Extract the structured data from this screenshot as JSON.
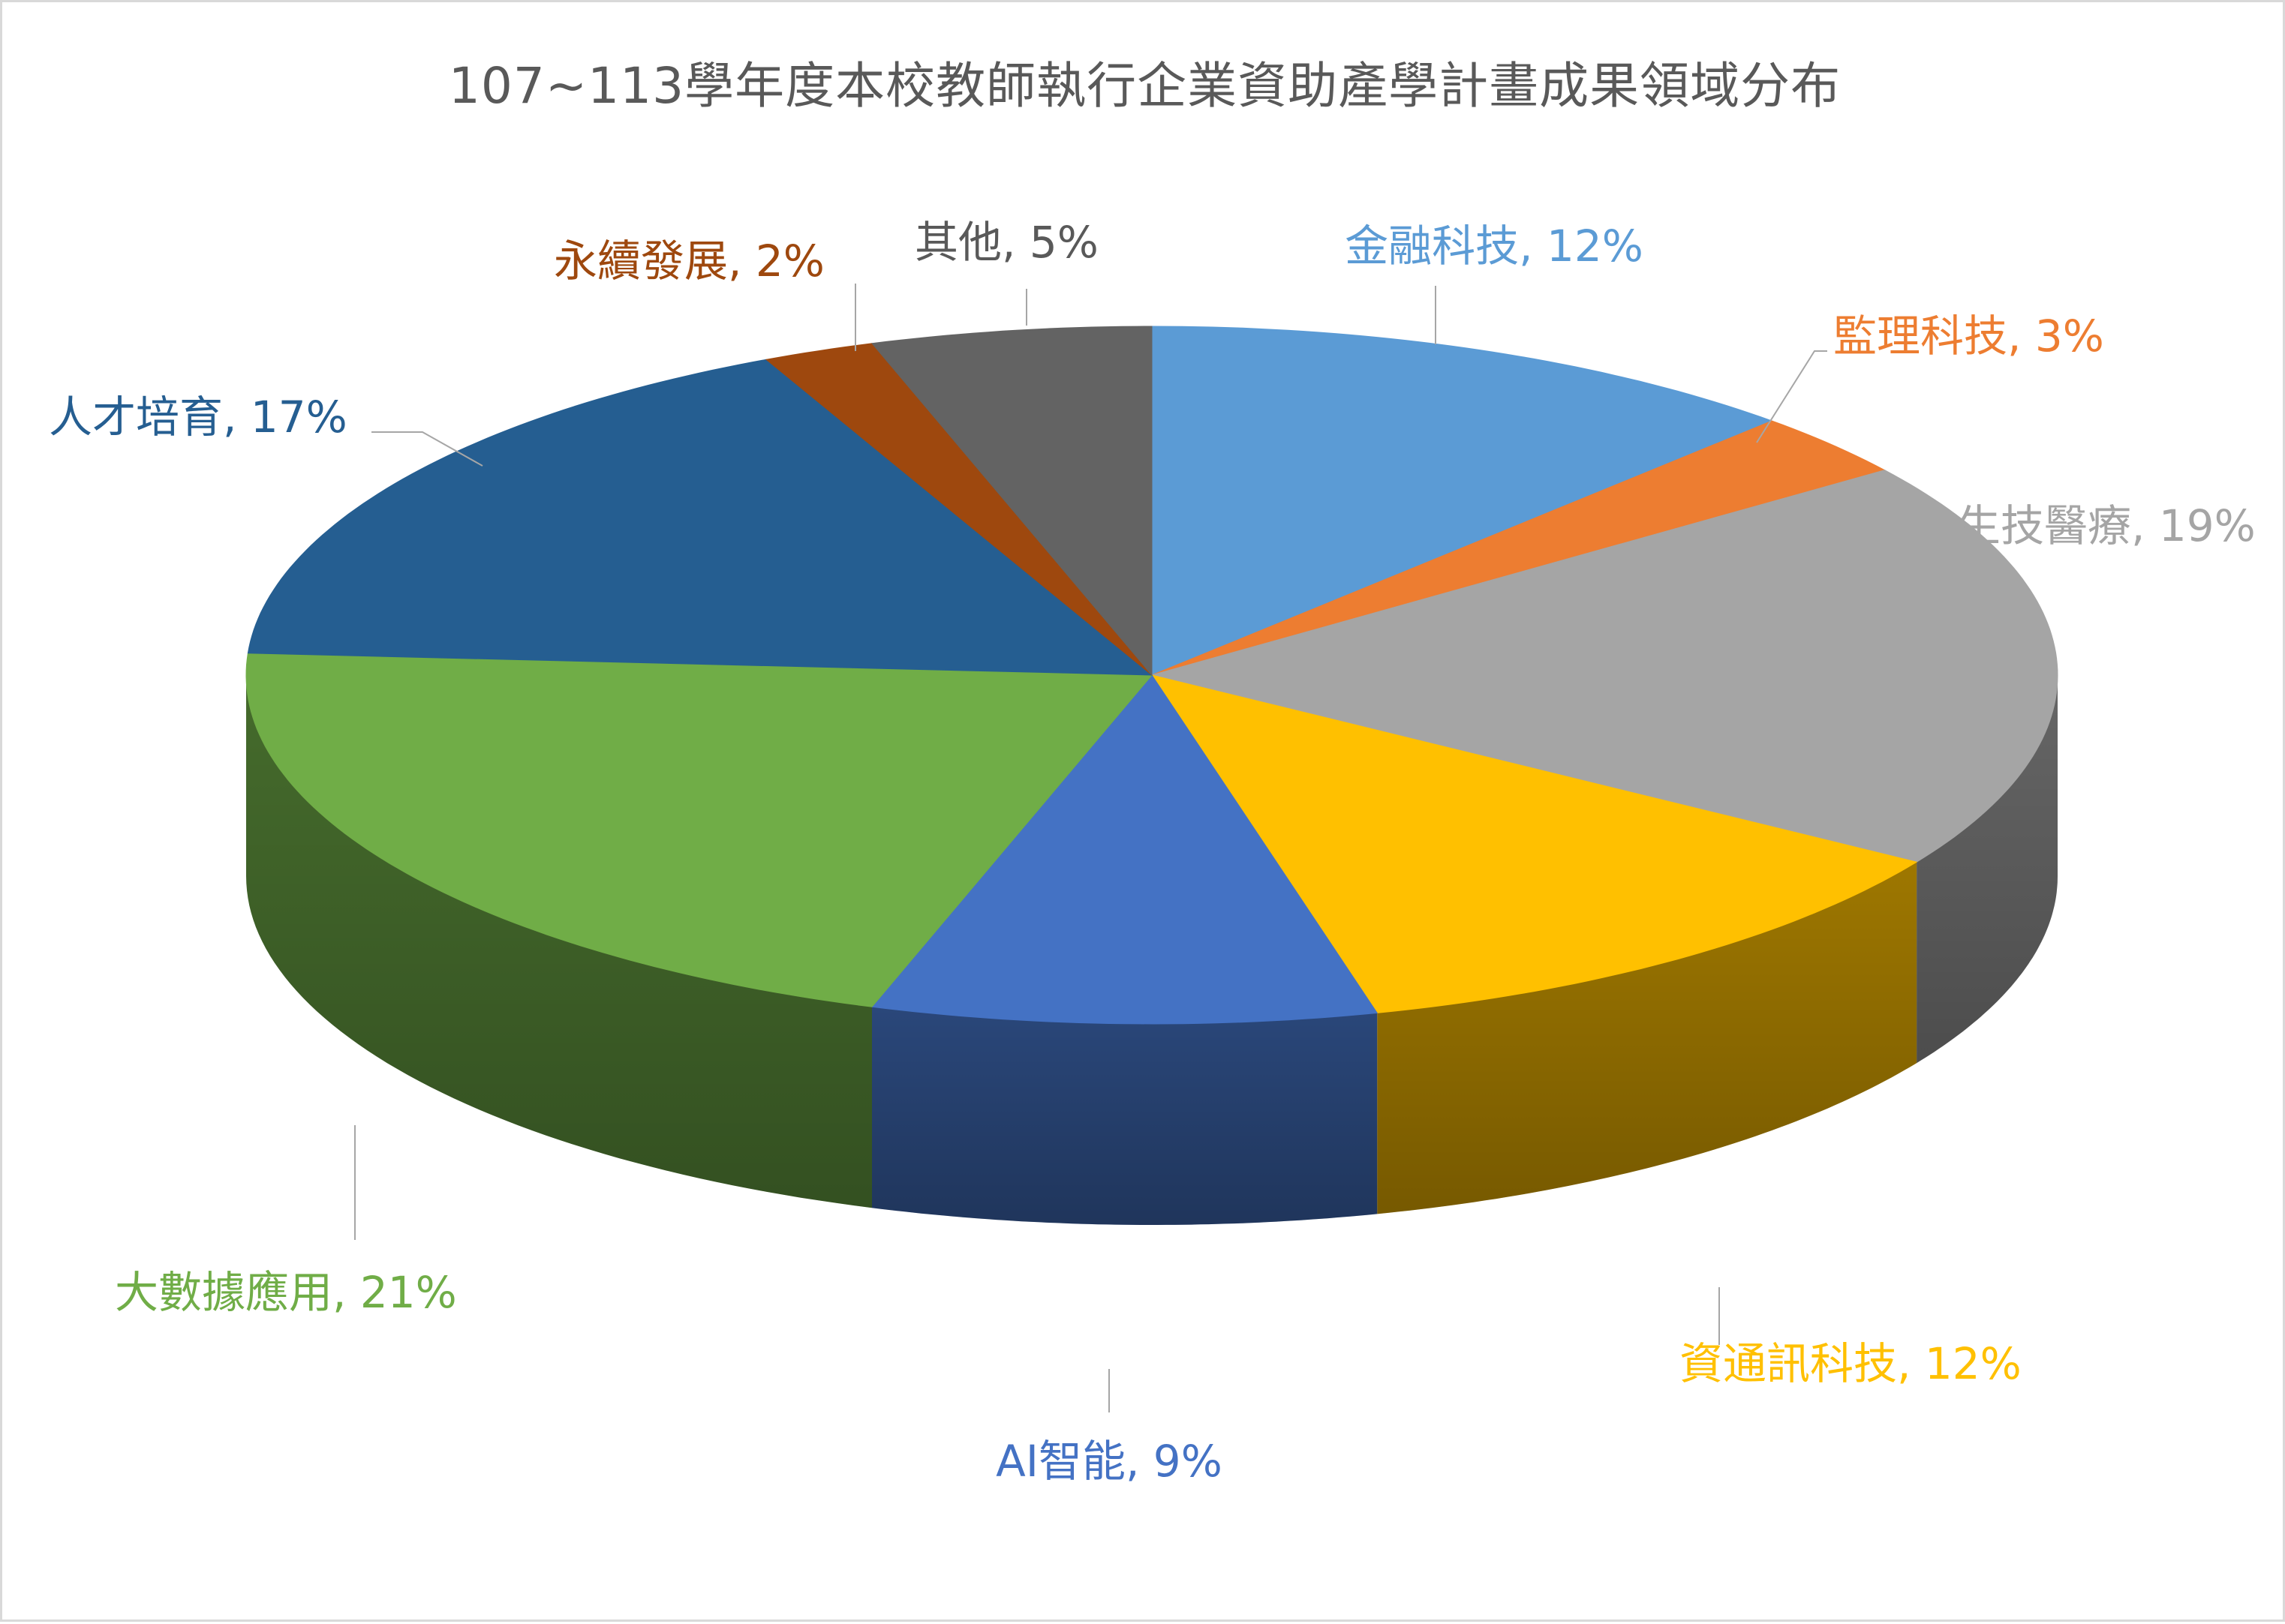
{
  "chart_data": {
    "type": "pie",
    "title": "107~113學年度本校教師執行企業資助產學計畫成果領域分布",
    "start_angle_deg": 0,
    "direction": "clockwise",
    "slices": [
      {
        "name": "金融科技",
        "value": 12,
        "label": "金融科技, 12%",
        "color": "#5B9BD5"
      },
      {
        "name": "監理科技",
        "value": 3,
        "label": "監理科技, 3%",
        "color": "#ED7D31"
      },
      {
        "name": "生技醫療",
        "value": 19,
        "label": "生技醫療, 19%",
        "color": "#A5A5A5"
      },
      {
        "name": "資通訊科技",
        "value": 12,
        "label": "資通訊科技, 12%",
        "color": "#FFC000"
      },
      {
        "name": "AI智能",
        "value": 9,
        "label": "AI智能, 9%",
        "color": "#4472C4"
      },
      {
        "name": "大數據應用",
        "value": 21,
        "label": "大數據應用, 21%",
        "color": "#70AD47"
      },
      {
        "name": "人才培育",
        "value": 17,
        "label": "人才培育, 17%",
        "color": "#255E91"
      },
      {
        "name": "永續發展",
        "value": 2,
        "label": "永續發展, 2%",
        "color": "#9E480E"
      },
      {
        "name": "其他",
        "value": 5,
        "label": "其他, 5%",
        "color": "#636363"
      }
    ],
    "label_colors": {
      "金融科技": "#5B9BD5",
      "監理科技": "#ED7D31",
      "生技醫療": "#A5A5A5",
      "資通訊科技": "#FFC000",
      "AI智能": "#4472C4",
      "大數據應用": "#70AD47",
      "人才培育": "#255E91",
      "永續發展": "#9E480E",
      "其他": "#595959"
    }
  }
}
